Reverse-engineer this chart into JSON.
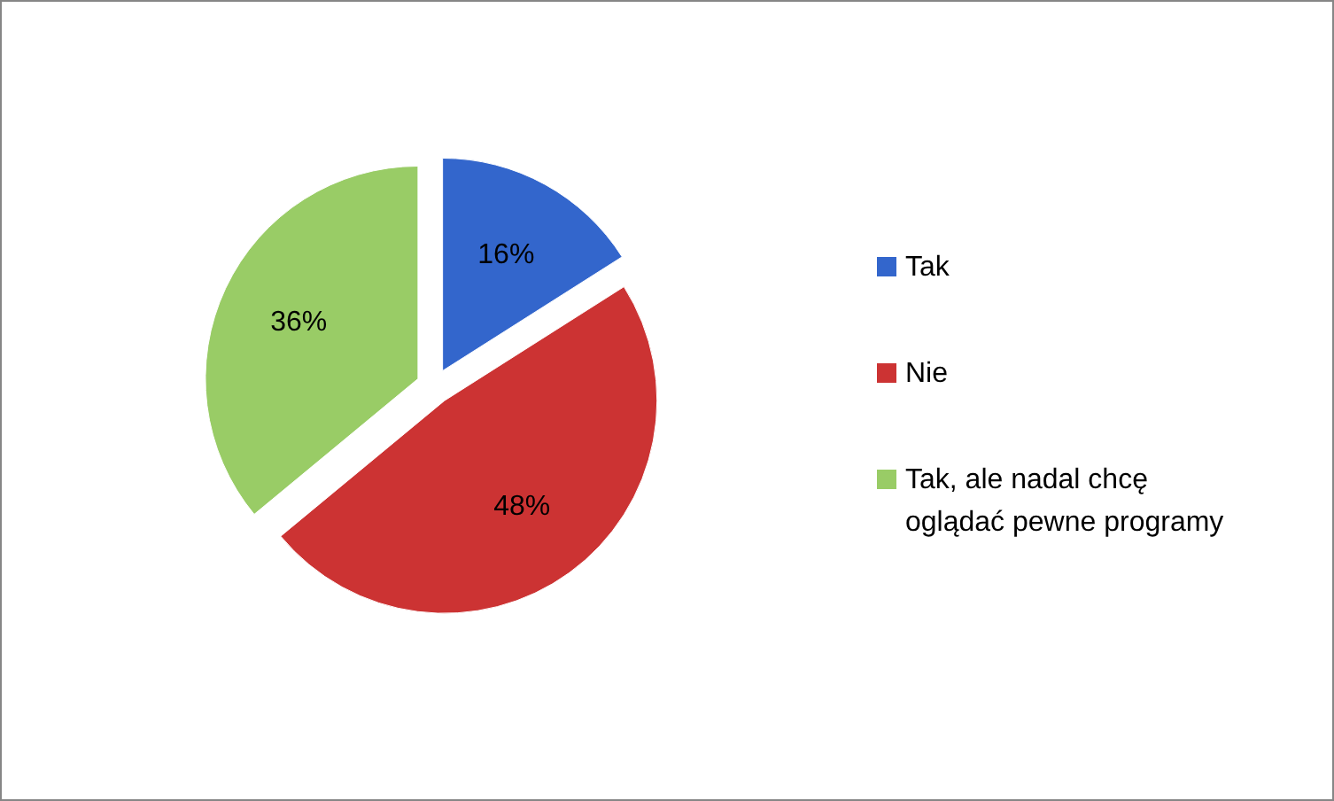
{
  "chart_data": {
    "type": "pie",
    "categories": [
      "Tak",
      "Nie",
      "Tak, ale nadal chcę oglądać pewne programy"
    ],
    "values": [
      16,
      48,
      36
    ],
    "colors": [
      "#3366cc",
      "#cc3333",
      "#99cc66"
    ],
    "value_labels": [
      "16%",
      "48%",
      "36%"
    ],
    "legend": "right"
  }
}
